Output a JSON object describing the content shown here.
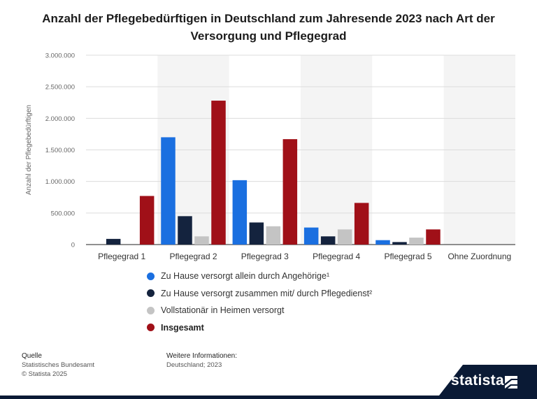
{
  "title": "Anzahl der Pflegebedürftigen in Deutschland zum Jahresende 2023 nach Art der Versorgung und Pflegegrad",
  "chart_data": {
    "type": "bar",
    "title": "Anzahl der Pflegebedürftigen in Deutschland zum Jahresende 2023 nach Art der Versorgung und Pflegegrad",
    "xlabel": "",
    "ylabel": "Anzahl der Pflegebedürftigen",
    "ylim": [
      0,
      3000000
    ],
    "yticks": [
      0,
      500000,
      1000000,
      1500000,
      2000000,
      2500000,
      3000000
    ],
    "ytick_labels": [
      "0",
      "500.000",
      "1.000.000",
      "1.500.000",
      "2.000.000",
      "2.500.000",
      "3.000.000"
    ],
    "categories": [
      "Pflegegrad 1",
      "Pflegegrad 2",
      "Pflegegrad 3",
      "Pflegegrad 4",
      "Pflegegrad 5",
      "Ohne Zuordnung"
    ],
    "series": [
      {
        "name": "Zu Hause versorgt allein durch Angehörige¹",
        "color": "#1a6fe0",
        "values": [
          0,
          1700000,
          1020000,
          270000,
          70000,
          0
        ]
      },
      {
        "name": "Zu Hause versorgt zusammen mit/ durch Pflegedienst²",
        "color": "#14233e",
        "values": [
          90000,
          450000,
          350000,
          130000,
          40000,
          0
        ]
      },
      {
        "name": "Vollstationär in Heimen versorgt",
        "color": "#c4c4c4",
        "values": [
          0,
          130000,
          290000,
          240000,
          110000,
          0
        ]
      },
      {
        "name": "Insgesamt",
        "color": "#a01018",
        "values": [
          770000,
          2280000,
          1670000,
          660000,
          240000,
          0
        ]
      }
    ],
    "grid": true,
    "legend_position": "bottom"
  },
  "legend_bold": [
    false,
    false,
    false,
    true
  ],
  "footer": {
    "source_heading": "Quelle",
    "source_lines": [
      "Statistisches Bundesamt",
      "© Statista 2025"
    ],
    "info_heading": "Weitere Informationen:",
    "info_lines": [
      "Deutschland; 2023"
    ]
  },
  "brand": "statista"
}
